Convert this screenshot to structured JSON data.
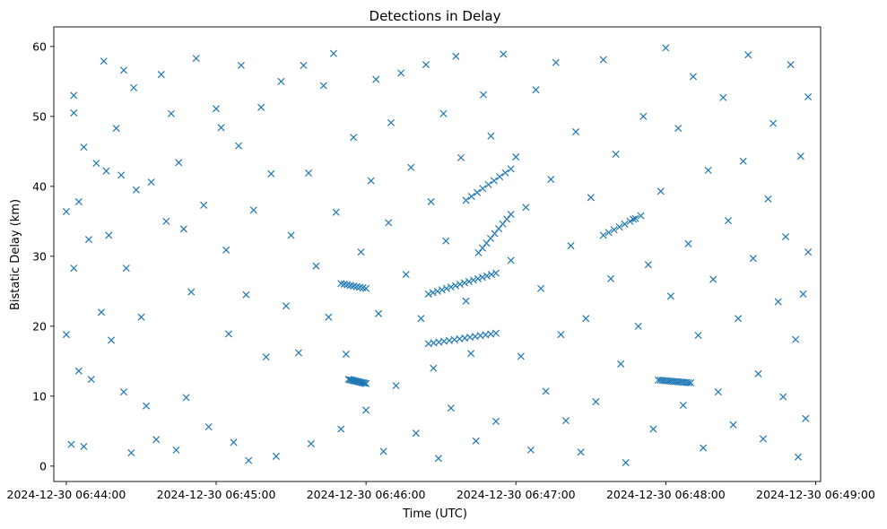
{
  "chart_data": {
    "type": "scatter",
    "title": "Detections in Delay",
    "xlabel": "Time (UTC)",
    "ylabel": "Bistatic Delay (km)",
    "marker": "x",
    "color": "#1f77b4",
    "xlim": [
      "2024-12-30 06:43:55",
      "2024-12-30 06:49:02"
    ],
    "ylim": [
      -2.2,
      62.8
    ],
    "xticks": [
      "2024-12-30 06:44:00",
      "2024-12-30 06:45:00",
      "2024-12-30 06:46:00",
      "2024-12-30 06:47:00",
      "2024-12-30 06:48:00",
      "2024-12-30 06:49:00"
    ],
    "yticks": [
      0,
      10,
      20,
      30,
      40,
      50,
      60
    ],
    "grid": false,
    "legend": "none",
    "tracks": [
      {
        "from": [
          "2024-12-30 06:45:50",
          26.1
        ],
        "to": [
          "2024-12-30 06:46:00",
          25.4
        ],
        "n": 9
      },
      {
        "from": [
          "2024-12-30 06:45:53",
          12.4
        ],
        "to": [
          "2024-12-30 06:46:00",
          11.8
        ],
        "n": 14
      },
      {
        "from": [
          "2024-12-30 06:46:25",
          24.6
        ],
        "to": [
          "2024-12-30 06:46:52",
          27.6
        ],
        "n": 16
      },
      {
        "from": [
          "2024-12-30 06:46:25",
          17.5
        ],
        "to": [
          "2024-12-30 06:46:52",
          19.0
        ],
        "n": 14
      },
      {
        "from": [
          "2024-12-30 06:46:45",
          30.5
        ],
        "to": [
          "2024-12-30 06:46:58",
          36.0
        ],
        "n": 9
      },
      {
        "from": [
          "2024-12-30 06:46:40",
          38.0
        ],
        "to": [
          "2024-12-30 06:46:58",
          42.5
        ],
        "n": 9
      },
      {
        "from": [
          "2024-12-30 06:47:35",
          33.0
        ],
        "to": [
          "2024-12-30 06:47:50",
          35.8
        ],
        "n": 8
      },
      {
        "from": [
          "2024-12-30 06:47:57",
          12.3
        ],
        "to": [
          "2024-12-30 06:48:10",
          11.9
        ],
        "n": 16
      }
    ],
    "scattered": [
      [
        "2024-12-30 06:44:00",
        18.8
      ],
      [
        "2024-12-30 06:44:00",
        36.4
      ],
      [
        "2024-12-30 06:44:02",
        3.1
      ],
      [
        "2024-12-30 06:44:03",
        28.3
      ],
      [
        "2024-12-30 06:44:03",
        50.5
      ],
      [
        "2024-12-30 06:44:03",
        53.0
      ],
      [
        "2024-12-30 06:44:05",
        37.8
      ],
      [
        "2024-12-30 06:44:05",
        13.6
      ],
      [
        "2024-12-30 06:44:07",
        45.6
      ],
      [
        "2024-12-30 06:44:07",
        2.8
      ],
      [
        "2024-12-30 06:44:09",
        32.4
      ],
      [
        "2024-12-30 06:44:10",
        12.4
      ],
      [
        "2024-12-30 06:44:12",
        43.3
      ],
      [
        "2024-12-30 06:44:14",
        22.0
      ],
      [
        "2024-12-30 06:44:15",
        57.9
      ],
      [
        "2024-12-30 06:44:16",
        42.2
      ],
      [
        "2024-12-30 06:44:17",
        33.0
      ],
      [
        "2024-12-30 06:44:18",
        18.0
      ],
      [
        "2024-12-30 06:44:20",
        48.3
      ],
      [
        "2024-12-30 06:44:22",
        41.6
      ],
      [
        "2024-12-30 06:44:23",
        56.6
      ],
      [
        "2024-12-30 06:44:23",
        10.6
      ],
      [
        "2024-12-30 06:44:24",
        28.3
      ],
      [
        "2024-12-30 06:44:26",
        1.9
      ],
      [
        "2024-12-30 06:44:27",
        54.1
      ],
      [
        "2024-12-30 06:44:28",
        39.5
      ],
      [
        "2024-12-30 06:44:30",
        21.3
      ],
      [
        "2024-12-30 06:44:32",
        8.6
      ],
      [
        "2024-12-30 06:44:34",
        40.6
      ],
      [
        "2024-12-30 06:44:36",
        3.8
      ],
      [
        "2024-12-30 06:44:38",
        56.0
      ],
      [
        "2024-12-30 06:44:40",
        35.0
      ],
      [
        "2024-12-30 06:44:42",
        50.4
      ],
      [
        "2024-12-30 06:44:44",
        2.3
      ],
      [
        "2024-12-30 06:44:45",
        43.4
      ],
      [
        "2024-12-30 06:44:47",
        33.9
      ],
      [
        "2024-12-30 06:44:48",
        9.8
      ],
      [
        "2024-12-30 06:44:50",
        24.9
      ],
      [
        "2024-12-30 06:44:52",
        58.3
      ],
      [
        "2024-12-30 06:44:55",
        37.3
      ],
      [
        "2024-12-30 06:44:57",
        5.6
      ],
      [
        "2024-12-30 06:45:00",
        51.1
      ],
      [
        "2024-12-30 06:45:02",
        48.4
      ],
      [
        "2024-12-30 06:45:04",
        30.9
      ],
      [
        "2024-12-30 06:45:05",
        18.9
      ],
      [
        "2024-12-30 06:45:07",
        3.4
      ],
      [
        "2024-12-30 06:45:09",
        45.8
      ],
      [
        "2024-12-30 06:45:10",
        57.3
      ],
      [
        "2024-12-30 06:45:12",
        24.5
      ],
      [
        "2024-12-30 06:45:13",
        0.8
      ],
      [
        "2024-12-30 06:45:15",
        36.6
      ],
      [
        "2024-12-30 06:45:18",
        51.3
      ],
      [
        "2024-12-30 06:45:20",
        15.6
      ],
      [
        "2024-12-30 06:45:22",
        41.8
      ],
      [
        "2024-12-30 06:45:24",
        1.4
      ],
      [
        "2024-12-30 06:45:26",
        55.0
      ],
      [
        "2024-12-30 06:45:28",
        22.9
      ],
      [
        "2024-12-30 06:45:30",
        33.0
      ],
      [
        "2024-12-30 06:45:33",
        16.2
      ],
      [
        "2024-12-30 06:45:35",
        57.3
      ],
      [
        "2024-12-30 06:45:37",
        41.9
      ],
      [
        "2024-12-30 06:45:38",
        3.2
      ],
      [
        "2024-12-30 06:45:40",
        28.6
      ],
      [
        "2024-12-30 06:45:43",
        54.4
      ],
      [
        "2024-12-30 06:45:45",
        21.3
      ],
      [
        "2024-12-30 06:45:47",
        59.0
      ],
      [
        "2024-12-30 06:45:48",
        36.3
      ],
      [
        "2024-12-30 06:45:50",
        5.3
      ],
      [
        "2024-12-30 06:45:52",
        16.0
      ],
      [
        "2024-12-30 06:45:55",
        47.0
      ],
      [
        "2024-12-30 06:45:58",
        30.6
      ],
      [
        "2024-12-30 06:46:00",
        8.0
      ],
      [
        "2024-12-30 06:46:02",
        40.8
      ],
      [
        "2024-12-30 06:46:04",
        55.3
      ],
      [
        "2024-12-30 06:46:05",
        21.8
      ],
      [
        "2024-12-30 06:46:07",
        2.1
      ],
      [
        "2024-12-30 06:46:09",
        34.8
      ],
      [
        "2024-12-30 06:46:10",
        49.1
      ],
      [
        "2024-12-30 06:46:12",
        11.5
      ],
      [
        "2024-12-30 06:46:14",
        56.2
      ],
      [
        "2024-12-30 06:46:16",
        27.4
      ],
      [
        "2024-12-30 06:46:18",
        42.7
      ],
      [
        "2024-12-30 06:46:20",
        4.7
      ],
      [
        "2024-12-30 06:46:22",
        21.1
      ],
      [
        "2024-12-30 06:46:24",
        57.4
      ],
      [
        "2024-12-30 06:46:26",
        37.8
      ],
      [
        "2024-12-30 06:46:27",
        14.0
      ],
      [
        "2024-12-30 06:46:29",
        1.1
      ],
      [
        "2024-12-30 06:46:31",
        50.4
      ],
      [
        "2024-12-30 06:46:32",
        32.2
      ],
      [
        "2024-12-30 06:46:34",
        8.3
      ],
      [
        "2024-12-30 06:46:36",
        58.6
      ],
      [
        "2024-12-30 06:46:38",
        44.1
      ],
      [
        "2024-12-30 06:46:40",
        23.6
      ],
      [
        "2024-12-30 06:46:42",
        16.1
      ],
      [
        "2024-12-30 06:46:44",
        3.6
      ],
      [
        "2024-12-30 06:46:47",
        53.1
      ],
      [
        "2024-12-30 06:46:50",
        47.2
      ],
      [
        "2024-12-30 06:46:52",
        6.4
      ],
      [
        "2024-12-30 06:46:55",
        58.9
      ],
      [
        "2024-12-30 06:46:58",
        29.4
      ],
      [
        "2024-12-30 06:47:00",
        44.2
      ],
      [
        "2024-12-30 06:47:02",
        15.7
      ],
      [
        "2024-12-30 06:47:04",
        37.0
      ],
      [
        "2024-12-30 06:47:06",
        2.3
      ],
      [
        "2024-12-30 06:47:08",
        53.8
      ],
      [
        "2024-12-30 06:47:10",
        25.4
      ],
      [
        "2024-12-30 06:47:12",
        10.7
      ],
      [
        "2024-12-30 06:47:14",
        41.0
      ],
      [
        "2024-12-30 06:47:16",
        57.7
      ],
      [
        "2024-12-30 06:47:18",
        18.8
      ],
      [
        "2024-12-30 06:47:20",
        6.5
      ],
      [
        "2024-12-30 06:47:22",
        31.5
      ],
      [
        "2024-12-30 06:47:24",
        47.8
      ],
      [
        "2024-12-30 06:47:26",
        2.0
      ],
      [
        "2024-12-30 06:47:28",
        21.1
      ],
      [
        "2024-12-30 06:47:30",
        38.4
      ],
      [
        "2024-12-30 06:47:32",
        9.2
      ],
      [
        "2024-12-30 06:47:35",
        58.1
      ],
      [
        "2024-12-30 06:47:38",
        26.8
      ],
      [
        "2024-12-30 06:47:40",
        44.6
      ],
      [
        "2024-12-30 06:47:42",
        14.6
      ],
      [
        "2024-12-30 06:47:44",
        0.5
      ],
      [
        "2024-12-30 06:47:47",
        35.3
      ],
      [
        "2024-12-30 06:47:49",
        20.0
      ],
      [
        "2024-12-30 06:47:51",
        50.0
      ],
      [
        "2024-12-30 06:47:53",
        28.8
      ],
      [
        "2024-12-30 06:47:55",
        5.3
      ],
      [
        "2024-12-30 06:47:58",
        39.3
      ],
      [
        "2024-12-30 06:48:00",
        59.8
      ],
      [
        "2024-12-30 06:48:02",
        24.3
      ],
      [
        "2024-12-30 06:48:05",
        48.3
      ],
      [
        "2024-12-30 06:48:07",
        8.7
      ],
      [
        "2024-12-30 06:48:09",
        31.8
      ],
      [
        "2024-12-30 06:48:11",
        55.7
      ],
      [
        "2024-12-30 06:48:13",
        18.7
      ],
      [
        "2024-12-30 06:48:15",
        2.6
      ],
      [
        "2024-12-30 06:48:17",
        42.3
      ],
      [
        "2024-12-30 06:48:19",
        26.7
      ],
      [
        "2024-12-30 06:48:21",
        10.6
      ],
      [
        "2024-12-30 06:48:23",
        52.7
      ],
      [
        "2024-12-30 06:48:25",
        35.1
      ],
      [
        "2024-12-30 06:48:27",
        5.9
      ],
      [
        "2024-12-30 06:48:29",
        21.1
      ],
      [
        "2024-12-30 06:48:31",
        43.6
      ],
      [
        "2024-12-30 06:48:33",
        58.8
      ],
      [
        "2024-12-30 06:48:35",
        29.7
      ],
      [
        "2024-12-30 06:48:37",
        13.2
      ],
      [
        "2024-12-30 06:48:39",
        3.9
      ],
      [
        "2024-12-30 06:48:41",
        38.2
      ],
      [
        "2024-12-30 06:48:43",
        49.0
      ],
      [
        "2024-12-30 06:48:45",
        23.5
      ],
      [
        "2024-12-30 06:48:47",
        9.9
      ],
      [
        "2024-12-30 06:48:48",
        32.8
      ],
      [
        "2024-12-30 06:48:50",
        57.4
      ],
      [
        "2024-12-30 06:48:52",
        18.1
      ],
      [
        "2024-12-30 06:48:53",
        1.3
      ],
      [
        "2024-12-30 06:48:54",
        44.3
      ],
      [
        "2024-12-30 06:48:55",
        24.6
      ],
      [
        "2024-12-30 06:48:56",
        6.8
      ],
      [
        "2024-12-30 06:48:57",
        52.8
      ],
      [
        "2024-12-30 06:48:57",
        30.6
      ]
    ]
  }
}
